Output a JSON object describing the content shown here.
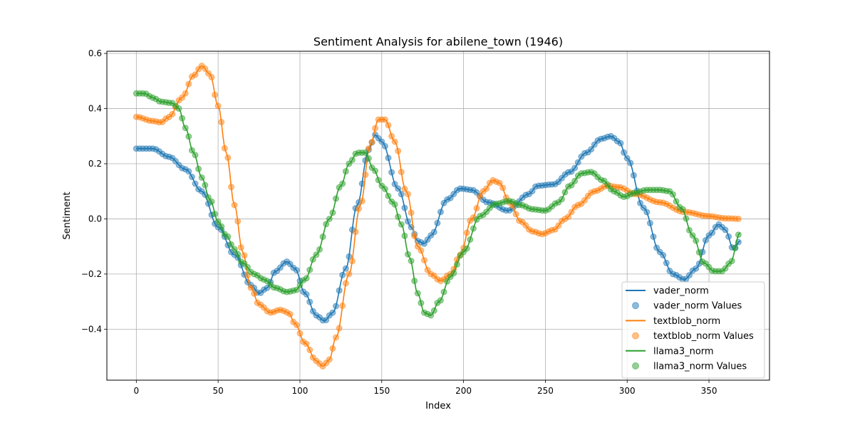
{
  "chart_data": {
    "type": "line",
    "title": "Sentiment Analysis for abilene_town (1946)",
    "xlabel": "Index",
    "ylabel": "Sentiment",
    "xlim": [
      -18,
      387
    ],
    "ylim": [
      -0.585,
      0.608
    ],
    "xticks": [
      0,
      50,
      100,
      150,
      200,
      250,
      300,
      350
    ],
    "yticks": [
      -0.4,
      -0.2,
      0.0,
      0.2,
      0.4,
      0.6
    ],
    "xtick_labels": [
      "0",
      "50",
      "100",
      "150",
      "200",
      "250",
      "300",
      "350"
    ],
    "ytick_labels": [
      "−0.4",
      "−0.2",
      "0.0",
      "0.2",
      "0.4",
      "0.6"
    ],
    "grid": true,
    "legend_position": "lower-right",
    "point_step": 2,
    "x_max": 369,
    "series": [
      {
        "name": "vader_norm",
        "color": "#1f77b4",
        "points": [
          [
            0,
            0.255
          ],
          [
            10,
            0.255
          ],
          [
            20,
            0.225
          ],
          [
            30,
            0.18
          ],
          [
            40,
            0.1
          ],
          [
            50,
            -0.03
          ],
          [
            60,
            -0.13
          ],
          [
            70,
            -0.24
          ],
          [
            75,
            -0.27
          ],
          [
            80,
            -0.25
          ],
          [
            85,
            -0.19
          ],
          [
            92,
            -0.155
          ],
          [
            97,
            -0.18
          ],
          [
            103,
            -0.27
          ],
          [
            110,
            -0.35
          ],
          [
            115,
            -0.37
          ],
          [
            120,
            -0.34
          ],
          [
            128,
            -0.18
          ],
          [
            135,
            0.05
          ],
          [
            142,
            0.25
          ],
          [
            146,
            0.305
          ],
          [
            150,
            0.28
          ],
          [
            160,
            0.11
          ],
          [
            168,
            -0.03
          ],
          [
            172,
            -0.08
          ],
          [
            176,
            -0.09
          ],
          [
            180,
            -0.06
          ],
          [
            190,
            0.07
          ],
          [
            198,
            0.11
          ],
          [
            205,
            0.105
          ],
          [
            215,
            0.06
          ],
          [
            227,
            0.03
          ],
          [
            240,
            0.09
          ],
          [
            245,
            0.12
          ],
          [
            255,
            0.125
          ],
          [
            265,
            0.17
          ],
          [
            275,
            0.24
          ],
          [
            284,
            0.29
          ],
          [
            290,
            0.3
          ],
          [
            295,
            0.28
          ],
          [
            300,
            0.22
          ],
          [
            310,
            0.04
          ],
          [
            320,
            -0.12
          ],
          [
            328,
            -0.2
          ],
          [
            335,
            -0.22
          ],
          [
            342,
            -0.18
          ],
          [
            350,
            -0.06
          ],
          [
            356,
            -0.02
          ],
          [
            360,
            -0.04
          ],
          [
            365,
            -0.11
          ],
          [
            369,
            -0.08
          ]
        ]
      },
      {
        "name": "textblob_norm",
        "color": "#ff7f0e",
        "points": [
          [
            0,
            0.37
          ],
          [
            10,
            0.355
          ],
          [
            15,
            0.35
          ],
          [
            20,
            0.37
          ],
          [
            28,
            0.44
          ],
          [
            35,
            0.52
          ],
          [
            40,
            0.555
          ],
          [
            45,
            0.525
          ],
          [
            50,
            0.41
          ],
          [
            55,
            0.24
          ],
          [
            60,
            0.05
          ],
          [
            65,
            -0.12
          ],
          [
            70,
            -0.25
          ],
          [
            75,
            -0.31
          ],
          [
            82,
            -0.34
          ],
          [
            88,
            -0.33
          ],
          [
            93,
            -0.34
          ],
          [
            97,
            -0.38
          ],
          [
            103,
            -0.45
          ],
          [
            110,
            -0.515
          ],
          [
            114,
            -0.535
          ],
          [
            118,
            -0.51
          ],
          [
            122,
            -0.43
          ],
          [
            130,
            -0.2
          ],
          [
            137,
            0.05
          ],
          [
            143,
            0.27
          ],
          [
            148,
            0.36
          ],
          [
            152,
            0.36
          ],
          [
            158,
            0.28
          ],
          [
            165,
            0.1
          ],
          [
            172,
            -0.1
          ],
          [
            180,
            -0.2
          ],
          [
            186,
            -0.225
          ],
          [
            192,
            -0.2
          ],
          [
            198,
            -0.13
          ],
          [
            205,
            0
          ],
          [
            212,
            0.1
          ],
          [
            218,
            0.14
          ],
          [
            222,
            0.13
          ],
          [
            228,
            0.06
          ],
          [
            235,
            -0.01
          ],
          [
            242,
            -0.045
          ],
          [
            248,
            -0.055
          ],
          [
            255,
            -0.04
          ],
          [
            262,
            0
          ],
          [
            270,
            0.05
          ],
          [
            280,
            0.1
          ],
          [
            288,
            0.12
          ],
          [
            295,
            0.115
          ],
          [
            305,
            0.09
          ],
          [
            320,
            0.06
          ],
          [
            335,
            0.025
          ],
          [
            350,
            0.01
          ],
          [
            360,
            0.002
          ],
          [
            369,
            0
          ]
        ]
      },
      {
        "name": "llama3_norm",
        "color": "#2ca02c",
        "points": [
          [
            0,
            0.455
          ],
          [
            5,
            0.455
          ],
          [
            10,
            0.44
          ],
          [
            15,
            0.425
          ],
          [
            22,
            0.42
          ],
          [
            26,
            0.4
          ],
          [
            30,
            0.33
          ],
          [
            35,
            0.24
          ],
          [
            40,
            0.15
          ],
          [
            45,
            0.07
          ],
          [
            50,
            -0.01
          ],
          [
            55,
            -0.06
          ],
          [
            60,
            -0.11
          ],
          [
            65,
            -0.16
          ],
          [
            72,
            -0.2
          ],
          [
            78,
            -0.22
          ],
          [
            85,
            -0.25
          ],
          [
            92,
            -0.265
          ],
          [
            97,
            -0.26
          ],
          [
            103,
            -0.22
          ],
          [
            110,
            -0.13
          ],
          [
            118,
            0
          ],
          [
            125,
            0.12
          ],
          [
            130,
            0.2
          ],
          [
            135,
            0.24
          ],
          [
            140,
            0.24
          ],
          [
            145,
            0.18
          ],
          [
            150,
            0.12
          ],
          [
            157,
            0.06
          ],
          [
            162,
            -0.02
          ],
          [
            167,
            -0.14
          ],
          [
            172,
            -0.27
          ],
          [
            176,
            -0.34
          ],
          [
            180,
            -0.35
          ],
          [
            185,
            -0.3
          ],
          [
            192,
            -0.21
          ],
          [
            200,
            -0.12
          ],
          [
            210,
            0.01
          ],
          [
            220,
            0.055
          ],
          [
            228,
            0.065
          ],
          [
            235,
            0.05
          ],
          [
            242,
            0.035
          ],
          [
            250,
            0.03
          ],
          [
            258,
            0.06
          ],
          [
            265,
            0.12
          ],
          [
            272,
            0.165
          ],
          [
            278,
            0.17
          ],
          [
            285,
            0.14
          ],
          [
            292,
            0.1
          ],
          [
            298,
            0.08
          ],
          [
            305,
            0.095
          ],
          [
            312,
            0.105
          ],
          [
            320,
            0.105
          ],
          [
            326,
            0.1
          ],
          [
            333,
            0.04
          ],
          [
            340,
            -0.06
          ],
          [
            347,
            -0.16
          ],
          [
            353,
            -0.19
          ],
          [
            358,
            -0.19
          ],
          [
            363,
            -0.16
          ],
          [
            369,
            -0.05
          ]
        ]
      }
    ],
    "legend": [
      {
        "label": "vader_norm",
        "kind": "line",
        "color": "#1f77b4"
      },
      {
        "label": "vader_norm Values",
        "kind": "marker",
        "color": "#1f77b4"
      },
      {
        "label": "textblob_norm",
        "kind": "line",
        "color": "#ff7f0e"
      },
      {
        "label": "textblob_norm Values",
        "kind": "marker",
        "color": "#ff7f0e"
      },
      {
        "label": "llama3_norm",
        "kind": "line",
        "color": "#2ca02c"
      },
      {
        "label": "llama3_norm Values",
        "kind": "marker",
        "color": "#2ca02c"
      }
    ]
  }
}
